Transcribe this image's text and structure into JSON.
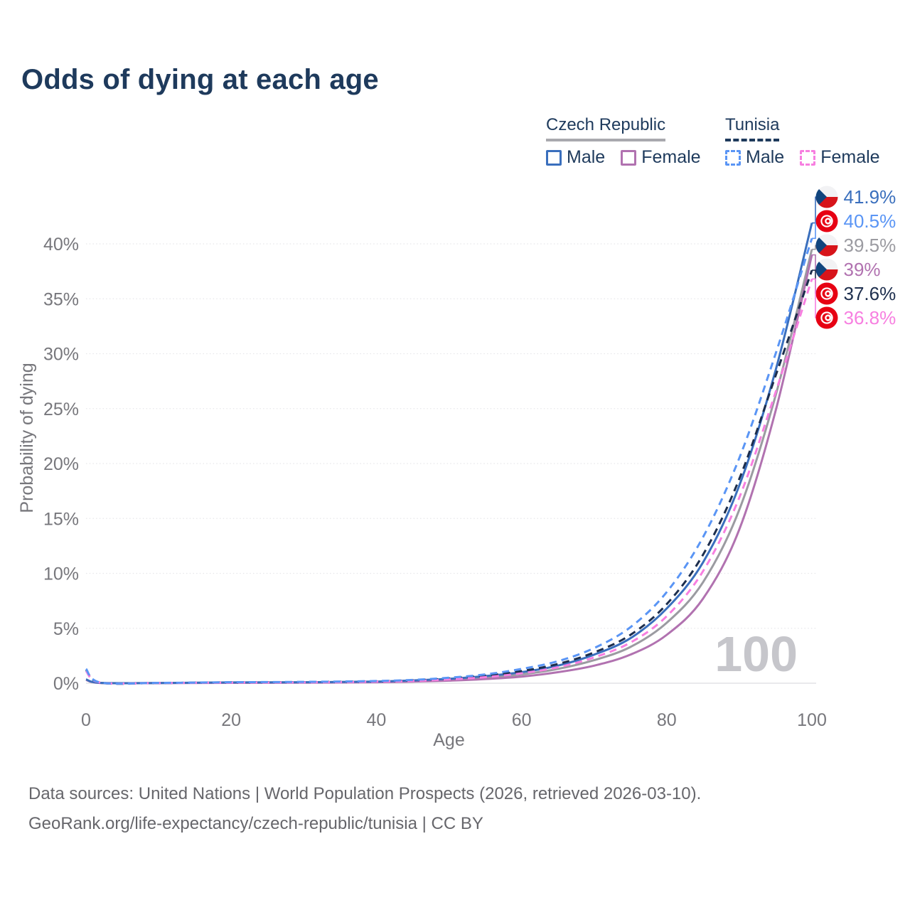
{
  "title": "Odds of dying at each age",
  "legend": {
    "groups": [
      {
        "label": "Czech Republic",
        "line_style": "solid",
        "underline_color": "#a9a9ae",
        "items": [
          {
            "label": "Male",
            "color": "#3a6fbd",
            "dashed": false
          },
          {
            "label": "Female",
            "color": "#b172b0",
            "dashed": false
          }
        ]
      },
      {
        "label": "Tunisia",
        "line_style": "dashed",
        "underline_color": "#1e3a5c",
        "items": [
          {
            "label": "Male",
            "color": "#5a95f5",
            "dashed": true
          },
          {
            "label": "Female",
            "color": "#f77fe0",
            "dashed": true
          }
        ]
      }
    ]
  },
  "chart_data": {
    "type": "line",
    "title": "Odds of dying at each age",
    "xlabel": "Age",
    "ylabel": "Probability of dying",
    "xlim": [
      0,
      100
    ],
    "ylim": [
      0,
      43
    ],
    "x_ticks": [
      0,
      20,
      40,
      60,
      80,
      100
    ],
    "y_ticks": [
      {
        "value": 0,
        "label": "0%"
      },
      {
        "value": 5,
        "label": "5%"
      },
      {
        "value": 10,
        "label": "10%"
      },
      {
        "value": 15,
        "label": "15%"
      },
      {
        "value": 20,
        "label": "20%"
      },
      {
        "value": 25,
        "label": "25%"
      },
      {
        "value": 30,
        "label": "30%"
      },
      {
        "value": 35,
        "label": "35%"
      },
      {
        "value": 40,
        "label": "40%"
      }
    ],
    "grid": true,
    "legend_position": "top-right",
    "watermark": "100",
    "ages": [
      0,
      2,
      10,
      20,
      30,
      40,
      45,
      50,
      55,
      60,
      65,
      70,
      75,
      80,
      85,
      90,
      95,
      100
    ],
    "series": [
      {
        "id": "czech-republic-combined",
        "name": "Czech Republic",
        "flag": "czech",
        "color": "#9b9ba1",
        "dashed": false,
        "end_label": "39.5%",
        "end_value": 39.5,
        "values": [
          0.32,
          0.03,
          0.02,
          0.05,
          0.07,
          0.12,
          0.2,
          0.31,
          0.5,
          0.8,
          1.3,
          2.1,
          3.3,
          5.5,
          9.2,
          15.8,
          26.2,
          39.5
        ]
      },
      {
        "id": "czech-republic-female",
        "name": "Czech Republic Female",
        "flag": "czech",
        "color": "#b172b0",
        "dashed": false,
        "end_label": "39%",
        "end_value": 39.0,
        "values": [
          0.3,
          0.02,
          0.01,
          0.03,
          0.05,
          0.09,
          0.15,
          0.23,
          0.38,
          0.6,
          1.0,
          1.6,
          2.6,
          4.4,
          7.7,
          14.0,
          24.8,
          39.0
        ]
      },
      {
        "id": "czech-republic-male",
        "name": "Czech Republic Male",
        "flag": "czech",
        "color": "#3a6fbd",
        "dashed": false,
        "end_label": "41.9%",
        "end_value": 41.9,
        "values": [
          0.35,
          0.03,
          0.02,
          0.07,
          0.09,
          0.15,
          0.25,
          0.4,
          0.65,
          1.0,
          1.6,
          2.6,
          4.1,
          6.8,
          11.0,
          18.0,
          28.5,
          41.9
        ]
      },
      {
        "id": "tunisia-combined",
        "name": "Tunisia",
        "flag": "tunisia",
        "color": "#1d2e4d",
        "dashed": true,
        "end_label": "37.6%",
        "end_value": 37.6,
        "values": [
          1.2,
          0.05,
          0.02,
          0.08,
          0.1,
          0.17,
          0.26,
          0.43,
          0.7,
          1.1,
          1.75,
          2.8,
          4.4,
          7.2,
          11.7,
          18.6,
          28.0,
          37.6
        ]
      },
      {
        "id": "tunisia-female",
        "name": "Tunisia Female",
        "flag": "tunisia",
        "color": "#f77fe0",
        "dashed": true,
        "end_label": "36.8%",
        "end_value": 36.8,
        "values": [
          1.1,
          0.05,
          0.02,
          0.06,
          0.08,
          0.14,
          0.21,
          0.35,
          0.55,
          0.9,
          1.45,
          2.35,
          3.7,
          6.1,
          10.2,
          16.9,
          26.5,
          36.8
        ]
      },
      {
        "id": "tunisia-male",
        "name": "Tunisia Male",
        "flag": "tunisia",
        "color": "#5a95f5",
        "dashed": true,
        "end_label": "40.5%",
        "end_value": 40.5,
        "values": [
          1.3,
          0.06,
          0.03,
          0.09,
          0.12,
          0.2,
          0.3,
          0.5,
          0.8,
          1.3,
          2.0,
          3.2,
          5.1,
          8.3,
          13.3,
          20.5,
          30.0,
          40.5
        ]
      }
    ],
    "value_labels": [
      {
        "label": "41.9%",
        "series": "czech-republic-male",
        "flag": "czech",
        "color": "#3a6fbd"
      },
      {
        "label": "40.5%",
        "series": "tunisia-male",
        "flag": "tunisia",
        "color": "#5a95f5"
      },
      {
        "label": "39.5%",
        "series": "czech-republic-combined",
        "flag": "czech",
        "color": "#9b9ba1"
      },
      {
        "label": "39%",
        "series": "czech-republic-female",
        "flag": "czech",
        "color": "#b172b0"
      },
      {
        "label": "37.6%",
        "series": "tunisia-combined",
        "flag": "tunisia",
        "color": "#1d2e4d"
      },
      {
        "label": "36.8%",
        "series": "tunisia-female",
        "flag": "tunisia",
        "color": "#f77fe0"
      }
    ]
  },
  "colors": {
    "title_text": "#1e3a5c",
    "axis_text": "#77777c",
    "gridline": "#e7e7ea",
    "zero_line": "#dcdce0",
    "watermark": "#c6c6cb",
    "footer_text": "#66666b",
    "flag_czech_blue": "#11457e",
    "flag_czech_red": "#d7141a",
    "flag_tunisia_red": "#e70013"
  },
  "footer": {
    "line1": "Data sources: United Nations | World Population Prospects (2026, retrieved 2026-03-10).",
    "line2": "GeoRank.org/life-expectancy/czech-republic/tunisia | CC BY"
  }
}
